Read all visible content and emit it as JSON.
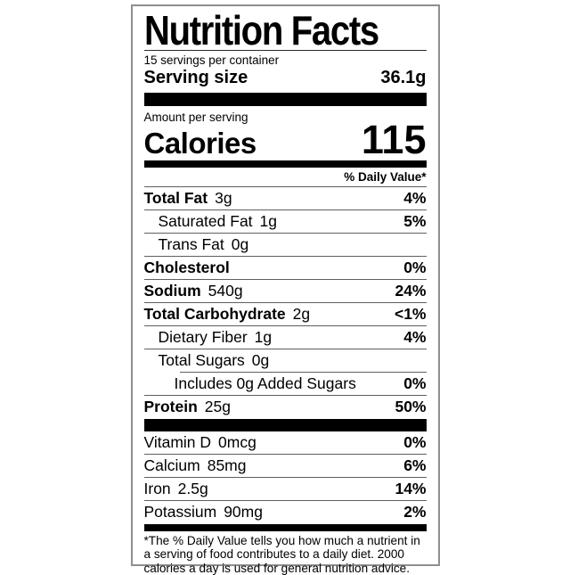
{
  "label": {
    "title": "Nutrition Facts",
    "servings_per_container": "15 servings per container",
    "serving_size": {
      "label": "Serving size",
      "value": "36.1g"
    },
    "amount_per_serving": "Amount per serving",
    "calories": {
      "label": "Calories",
      "value": "115"
    },
    "daily_value_header": "% Daily Value*",
    "nutrients": [
      {
        "name": "Total Fat",
        "amount": "3g",
        "dv": "4%",
        "bold": true,
        "indent": 0,
        "rule_below": "full"
      },
      {
        "name": "Saturated Fat",
        "amount": "1g",
        "dv": "5%",
        "bold": false,
        "indent": 1,
        "rule_below": "full"
      },
      {
        "name": "Trans Fat",
        "amount": "0g",
        "dv": "",
        "bold": false,
        "indent": 1,
        "rule_below": "full"
      },
      {
        "name": "Cholesterol",
        "amount": "",
        "dv": "0%",
        "bold": true,
        "indent": 0,
        "rule_below": "full"
      },
      {
        "name": "Sodium",
        "amount": "540g",
        "dv": "24%",
        "bold": true,
        "indent": 0,
        "rule_below": "full"
      },
      {
        "name": "Total Carbohydrate",
        "amount": "2g",
        "dv": "<1%",
        "bold": true,
        "indent": 0,
        "rule_below": "full"
      },
      {
        "name": "Dietary Fiber",
        "amount": "1g",
        "dv": "4%",
        "bold": false,
        "indent": 1,
        "rule_below": "full"
      },
      {
        "name": "Total Sugars",
        "amount": "0g",
        "dv": "",
        "bold": false,
        "indent": 1,
        "rule_below": "indent"
      },
      {
        "name": "Includes 0g Added Sugars",
        "amount": "",
        "dv": "0%",
        "bold": false,
        "indent": 2,
        "rule_below": "full"
      },
      {
        "name": "Protein",
        "amount": "25g",
        "dv": "50%",
        "bold": true,
        "indent": 0,
        "rule_below": "none"
      }
    ],
    "vitamins": [
      {
        "name": "Vitamin D",
        "amount": "0mcg",
        "dv": "0%",
        "bold": false,
        "indent": 0,
        "rule_below": "full"
      },
      {
        "name": "Calcium",
        "amount": "85mg",
        "dv": "6%",
        "bold": false,
        "indent": 0,
        "rule_below": "full"
      },
      {
        "name": "Iron",
        "amount": "2.5g",
        "dv": "14%",
        "bold": false,
        "indent": 0,
        "rule_below": "full"
      },
      {
        "name": "Potassium",
        "amount": "90mg",
        "dv": "2%",
        "bold": false,
        "indent": 0,
        "rule_below": "none"
      }
    ],
    "footnote": "*The % Daily Value tells you how much a nutrient in a serving of food contributes to a daily diet. 2000 calories a day is used for general nutrition advice."
  },
  "colors": {
    "ink": "#000000",
    "rule": "#5f5f5f",
    "border": "#8f8f8f",
    "background": "#ffffff"
  }
}
